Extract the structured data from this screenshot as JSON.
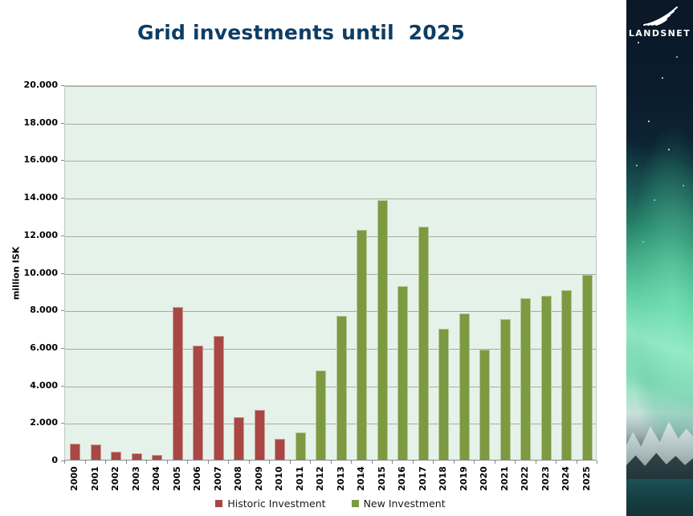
{
  "title": "Grid investments until  2025",
  "logo": {
    "text": "LANDSNET",
    "icon": "landsnet-wing-icon"
  },
  "colors": {
    "title": "#0E3D64",
    "historic_bar": "#A84743",
    "new_bar": "#7B9A41",
    "plot_background": "#E5F2E9",
    "gridline": "#A8ABA5",
    "photo_sky": "#0A1726",
    "photo_aurora": "#7FDCB4",
    "photo_water": "#1D5056"
  },
  "chart_data": {
    "type": "bar",
    "title": "Grid investments until  2025",
    "categories": [
      "2000",
      "2001",
      "2002",
      "2003",
      "2004",
      "2005",
      "2006",
      "2007",
      "2008",
      "2009",
      "2010",
      "2011",
      "2012",
      "2013",
      "2014",
      "2015",
      "2016",
      "2017",
      "2018",
      "2019",
      "2020",
      "2021",
      "2022",
      "2023",
      "2024",
      "2025"
    ],
    "series": [
      {
        "name": "Historic Investment",
        "color": "#A84743",
        "values": [
          850,
          800,
          450,
          350,
          250,
          8150,
          6100,
          6600,
          2250,
          2650,
          1100,
          null,
          null,
          null,
          null,
          null,
          null,
          null,
          null,
          null,
          null,
          null,
          null,
          null,
          null,
          null
        ]
      },
      {
        "name": "New Investment",
        "color": "#7B9A41",
        "values": [
          null,
          null,
          null,
          null,
          null,
          null,
          null,
          null,
          null,
          null,
          null,
          1450,
          4750,
          7650,
          12250,
          13850,
          9250,
          12400,
          7000,
          7800,
          5850,
          7500,
          8600,
          8750,
          9050,
          9850
        ]
      }
    ],
    "xlabel": "",
    "ylabel": "million ISK",
    "ylim": [
      0,
      20000
    ],
    "ytick_step": 2000,
    "ytick_labels": [
      "0",
      "2.000",
      "4.000",
      "6.000",
      "8.000",
      "10.000",
      "12.000",
      "14.000",
      "16.000",
      "18.000",
      "20.000"
    ],
    "grid": true,
    "legend_position": "bottom"
  }
}
